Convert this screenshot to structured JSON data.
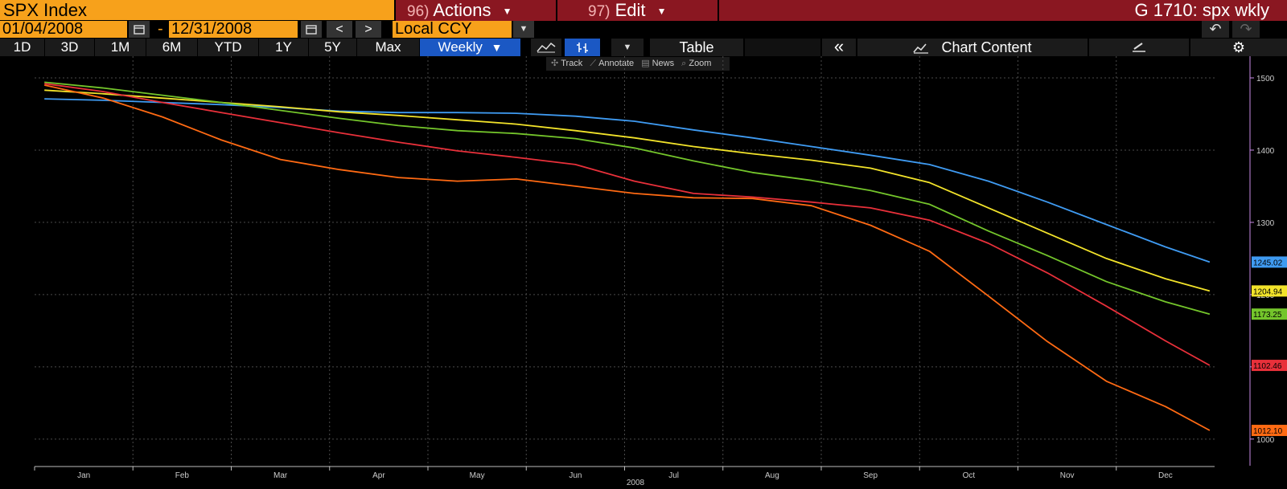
{
  "header": {
    "security": "SPX Index",
    "actions_num": "96)",
    "actions_label": "Actions",
    "edit_num": "97)",
    "edit_label": "Edit",
    "title": "G 1710: spx wkly"
  },
  "controls": {
    "start_date": "01/04/2008",
    "date_separator": "-",
    "end_date": "12/31/2008",
    "prev": "<",
    "next": ">",
    "currency": "Local CCY"
  },
  "periods": [
    "1D",
    "3D",
    "1M",
    "6M",
    "YTD",
    "1Y",
    "5Y",
    "Max"
  ],
  "frequency": "Weekly",
  "toolbar": {
    "table_label": "Table",
    "collapse_label": "«",
    "chart_content_label": "Chart Content"
  },
  "subtools": {
    "track": "Track",
    "annotate": "Annotate",
    "news": "News",
    "zoom": "Zoom"
  },
  "colors": {
    "blue": "#3f9bf2",
    "yellow": "#f2e32a",
    "green": "#74c52b",
    "red": "#e8303a",
    "orange": "#ff6a13",
    "accent": "#f7a11b",
    "bar_red": "#8a1721"
  },
  "chart_data": {
    "type": "line",
    "title": "",
    "xlabel": "2008",
    "ylabel": "",
    "x_ticks": [
      "Jan",
      "Feb",
      "Mar",
      "Apr",
      "May",
      "Jun",
      "Jul",
      "Aug",
      "Sep",
      "Oct",
      "Nov",
      "Dec"
    ],
    "x_tick_pos": [
      0.5,
      1.5,
      2.5,
      3.5,
      4.5,
      5.5,
      6.5,
      7.5,
      8.5,
      9.5,
      10.5,
      11.5
    ],
    "y_ticks": [
      1000,
      1100,
      1200,
      1300,
      1400,
      1500
    ],
    "ylim": [
      962,
      1530
    ],
    "xlim": [
      0,
      12
    ],
    "grid": true,
    "x": [
      0.1,
      0.7,
      1.3,
      1.9,
      2.5,
      3.1,
      3.7,
      4.3,
      4.9,
      5.5,
      6.1,
      6.7,
      7.3,
      7.9,
      8.5,
      9.1,
      9.7,
      10.3,
      10.9,
      11.5,
      11.95
    ],
    "series": [
      {
        "color": "blue",
        "last_label": "1245.02",
        "values": [
          1471,
          1469,
          1466,
          1463,
          1459,
          1454,
          1452,
          1452,
          1451,
          1447,
          1440,
          1428,
          1417,
          1405,
          1393,
          1380,
          1357,
          1328,
          1297,
          1266,
          1245
        ]
      },
      {
        "color": "yellow",
        "last_label": "1204.94",
        "values": [
          1483,
          1478,
          1472,
          1466,
          1460,
          1453,
          1448,
          1442,
          1436,
          1427,
          1417,
          1405,
          1395,
          1386,
          1375,
          1355,
          1320,
          1285,
          1250,
          1222,
          1205
        ]
      },
      {
        "color": "green",
        "last_label": "1173.25",
        "values": [
          1494,
          1486,
          1476,
          1466,
          1455,
          1444,
          1434,
          1427,
          1423,
          1416,
          1403,
          1385,
          1369,
          1358,
          1344,
          1325,
          1288,
          1254,
          1218,
          1190,
          1173
        ]
      },
      {
        "color": "red",
        "last_label": "1102.46",
        "values": [
          1492,
          1481,
          1466,
          1452,
          1438,
          1424,
          1411,
          1399,
          1390,
          1380,
          1357,
          1340,
          1335,
          1328,
          1320,
          1303,
          1271,
          1230,
          1184,
          1136,
          1102
        ]
      },
      {
        "color": "orange",
        "last_label": "1012.10",
        "values": [
          1490,
          1472,
          1446,
          1414,
          1387,
          1373,
          1362,
          1357,
          1360,
          1350,
          1340,
          1334,
          1333,
          1323,
          1296,
          1260,
          1198,
          1135,
          1080,
          1045,
          1012
        ]
      }
    ]
  }
}
